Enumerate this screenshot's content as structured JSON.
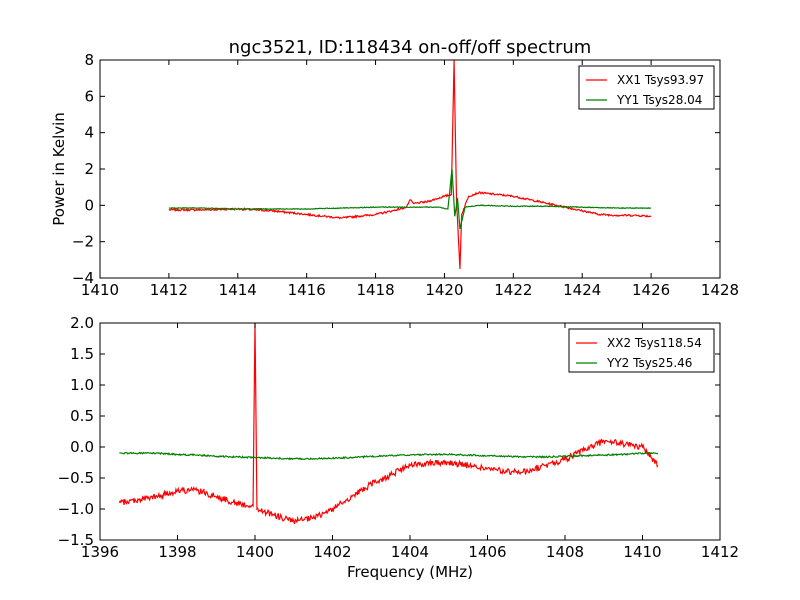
{
  "chart_data": [
    {
      "type": "line",
      "title": "ngc3521, ID:118434 on-off/off spectrum",
      "xlabel": "",
      "ylabel": "Power in Kelvin",
      "xlim": [
        1410,
        1428
      ],
      "ylim": [
        -4,
        8
      ],
      "xticks": [
        1410,
        1412,
        1414,
        1416,
        1418,
        1420,
        1422,
        1424,
        1426,
        1428
      ],
      "yticks": [
        -4,
        -2,
        0,
        2,
        4,
        6,
        8
      ],
      "xtick_labels": [
        "1410",
        "1412",
        "1414",
        "1416",
        "1418",
        "1420",
        "1422",
        "1424",
        "1426",
        "1428"
      ],
      "ytick_labels": [
        "−4",
        "−2",
        "0",
        "2",
        "4",
        "6",
        "8"
      ],
      "legend": "top-right",
      "grid": false,
      "series": [
        {
          "name": "XX1 Tsys93.97",
          "color": "#ff0000",
          "x": [
            1412,
            1413,
            1414,
            1415,
            1416,
            1416.5,
            1417,
            1417.5,
            1418,
            1418.5,
            1418.9,
            1419,
            1419.1,
            1419.5,
            1420,
            1420.2,
            1420.28,
            1420.35,
            1420.45,
            1420.5,
            1420.7,
            1421,
            1421.5,
            1422,
            1422.5,
            1423,
            1423.5,
            1424,
            1424.5,
            1425,
            1425.5,
            1426
          ],
          "y": [
            -0.25,
            -0.25,
            -0.2,
            -0.3,
            -0.5,
            -0.6,
            -0.7,
            -0.6,
            -0.5,
            -0.3,
            -0.1,
            0.3,
            0.1,
            0.2,
            0.5,
            0.6,
            8.0,
            0.3,
            -3.5,
            -0.5,
            0.5,
            0.7,
            0.6,
            0.5,
            0.3,
            0.1,
            -0.1,
            -0.3,
            -0.5,
            -0.55,
            -0.55,
            -0.6
          ]
        },
        {
          "name": "YY1 Tsys28.04",
          "color": "#008000",
          "x": [
            1412,
            1413,
            1414,
            1415,
            1416,
            1417,
            1418,
            1419,
            1419.8,
            1420.1,
            1420.22,
            1420.3,
            1420.38,
            1420.45,
            1420.6,
            1421,
            1422,
            1423,
            1424,
            1425,
            1426
          ],
          "y": [
            -0.15,
            -0.15,
            -0.2,
            -0.2,
            -0.2,
            -0.15,
            -0.1,
            -0.1,
            -0.1,
            -0.2,
            2.0,
            -0.6,
            0.4,
            -1.3,
            -0.1,
            0.0,
            -0.05,
            -0.05,
            -0.1,
            -0.15,
            -0.15
          ]
        }
      ]
    },
    {
      "type": "line",
      "title": "",
      "xlabel": "Frequency (MHz)",
      "ylabel": "",
      "xlim": [
        1396,
        1412
      ],
      "ylim": [
        -1.5,
        2.0
      ],
      "xticks": [
        1396,
        1398,
        1400,
        1402,
        1404,
        1406,
        1408,
        1410,
        1412
      ],
      "yticks": [
        -1.5,
        -1.0,
        -0.5,
        0.0,
        0.5,
        1.0,
        1.5,
        2.0
      ],
      "xtick_labels": [
        "1396",
        "1398",
        "1400",
        "1402",
        "1404",
        "1406",
        "1408",
        "1410",
        "1412"
      ],
      "ytick_labels": [
        "−1.5",
        "−1.0",
        "−0.5",
        "0.0",
        "0.5",
        "1.0",
        "1.5",
        "2.0"
      ],
      "legend": "top-right",
      "grid": false,
      "series": [
        {
          "name": "XX2 Tsys118.54",
          "color": "#ff0000",
          "x": [
            1396.5,
            1397,
            1397.5,
            1398,
            1398.5,
            1399,
            1399.5,
            1399.95,
            1400.0,
            1400.05,
            1400.5,
            1401,
            1401.5,
            1402,
            1402.5,
            1403,
            1403.5,
            1404,
            1404.5,
            1405,
            1405.5,
            1406,
            1406.5,
            1407,
            1407.5,
            1408,
            1408.5,
            1409,
            1409.5,
            1410,
            1410.4
          ],
          "y": [
            -0.9,
            -0.85,
            -0.8,
            -0.7,
            -0.7,
            -0.8,
            -0.9,
            -0.95,
            2.0,
            -1.0,
            -1.1,
            -1.2,
            -1.15,
            -1.0,
            -0.8,
            -0.6,
            -0.45,
            -0.3,
            -0.25,
            -0.25,
            -0.3,
            -0.35,
            -0.4,
            -0.4,
            -0.3,
            -0.2,
            -0.05,
            0.1,
            0.05,
            0.0,
            -0.3
          ]
        },
        {
          "name": "YY2 Tsys25.46",
          "color": "#008000",
          "x": [
            1396.5,
            1397,
            1397.5,
            1398,
            1398.5,
            1399,
            1399.5,
            1400,
            1400.5,
            1401,
            1401.5,
            1402,
            1402.5,
            1403,
            1403.5,
            1404,
            1404.5,
            1405,
            1405.5,
            1406,
            1406.5,
            1407,
            1407.5,
            1408,
            1408.5,
            1409,
            1409.5,
            1410,
            1410.4
          ],
          "y": [
            -0.1,
            -0.1,
            -0.1,
            -0.12,
            -0.13,
            -0.15,
            -0.16,
            -0.17,
            -0.18,
            -0.19,
            -0.19,
            -0.18,
            -0.17,
            -0.15,
            -0.14,
            -0.13,
            -0.12,
            -0.12,
            -0.13,
            -0.14,
            -0.15,
            -0.16,
            -0.16,
            -0.15,
            -0.14,
            -0.13,
            -0.12,
            -0.1,
            -0.1
          ]
        }
      ]
    }
  ]
}
